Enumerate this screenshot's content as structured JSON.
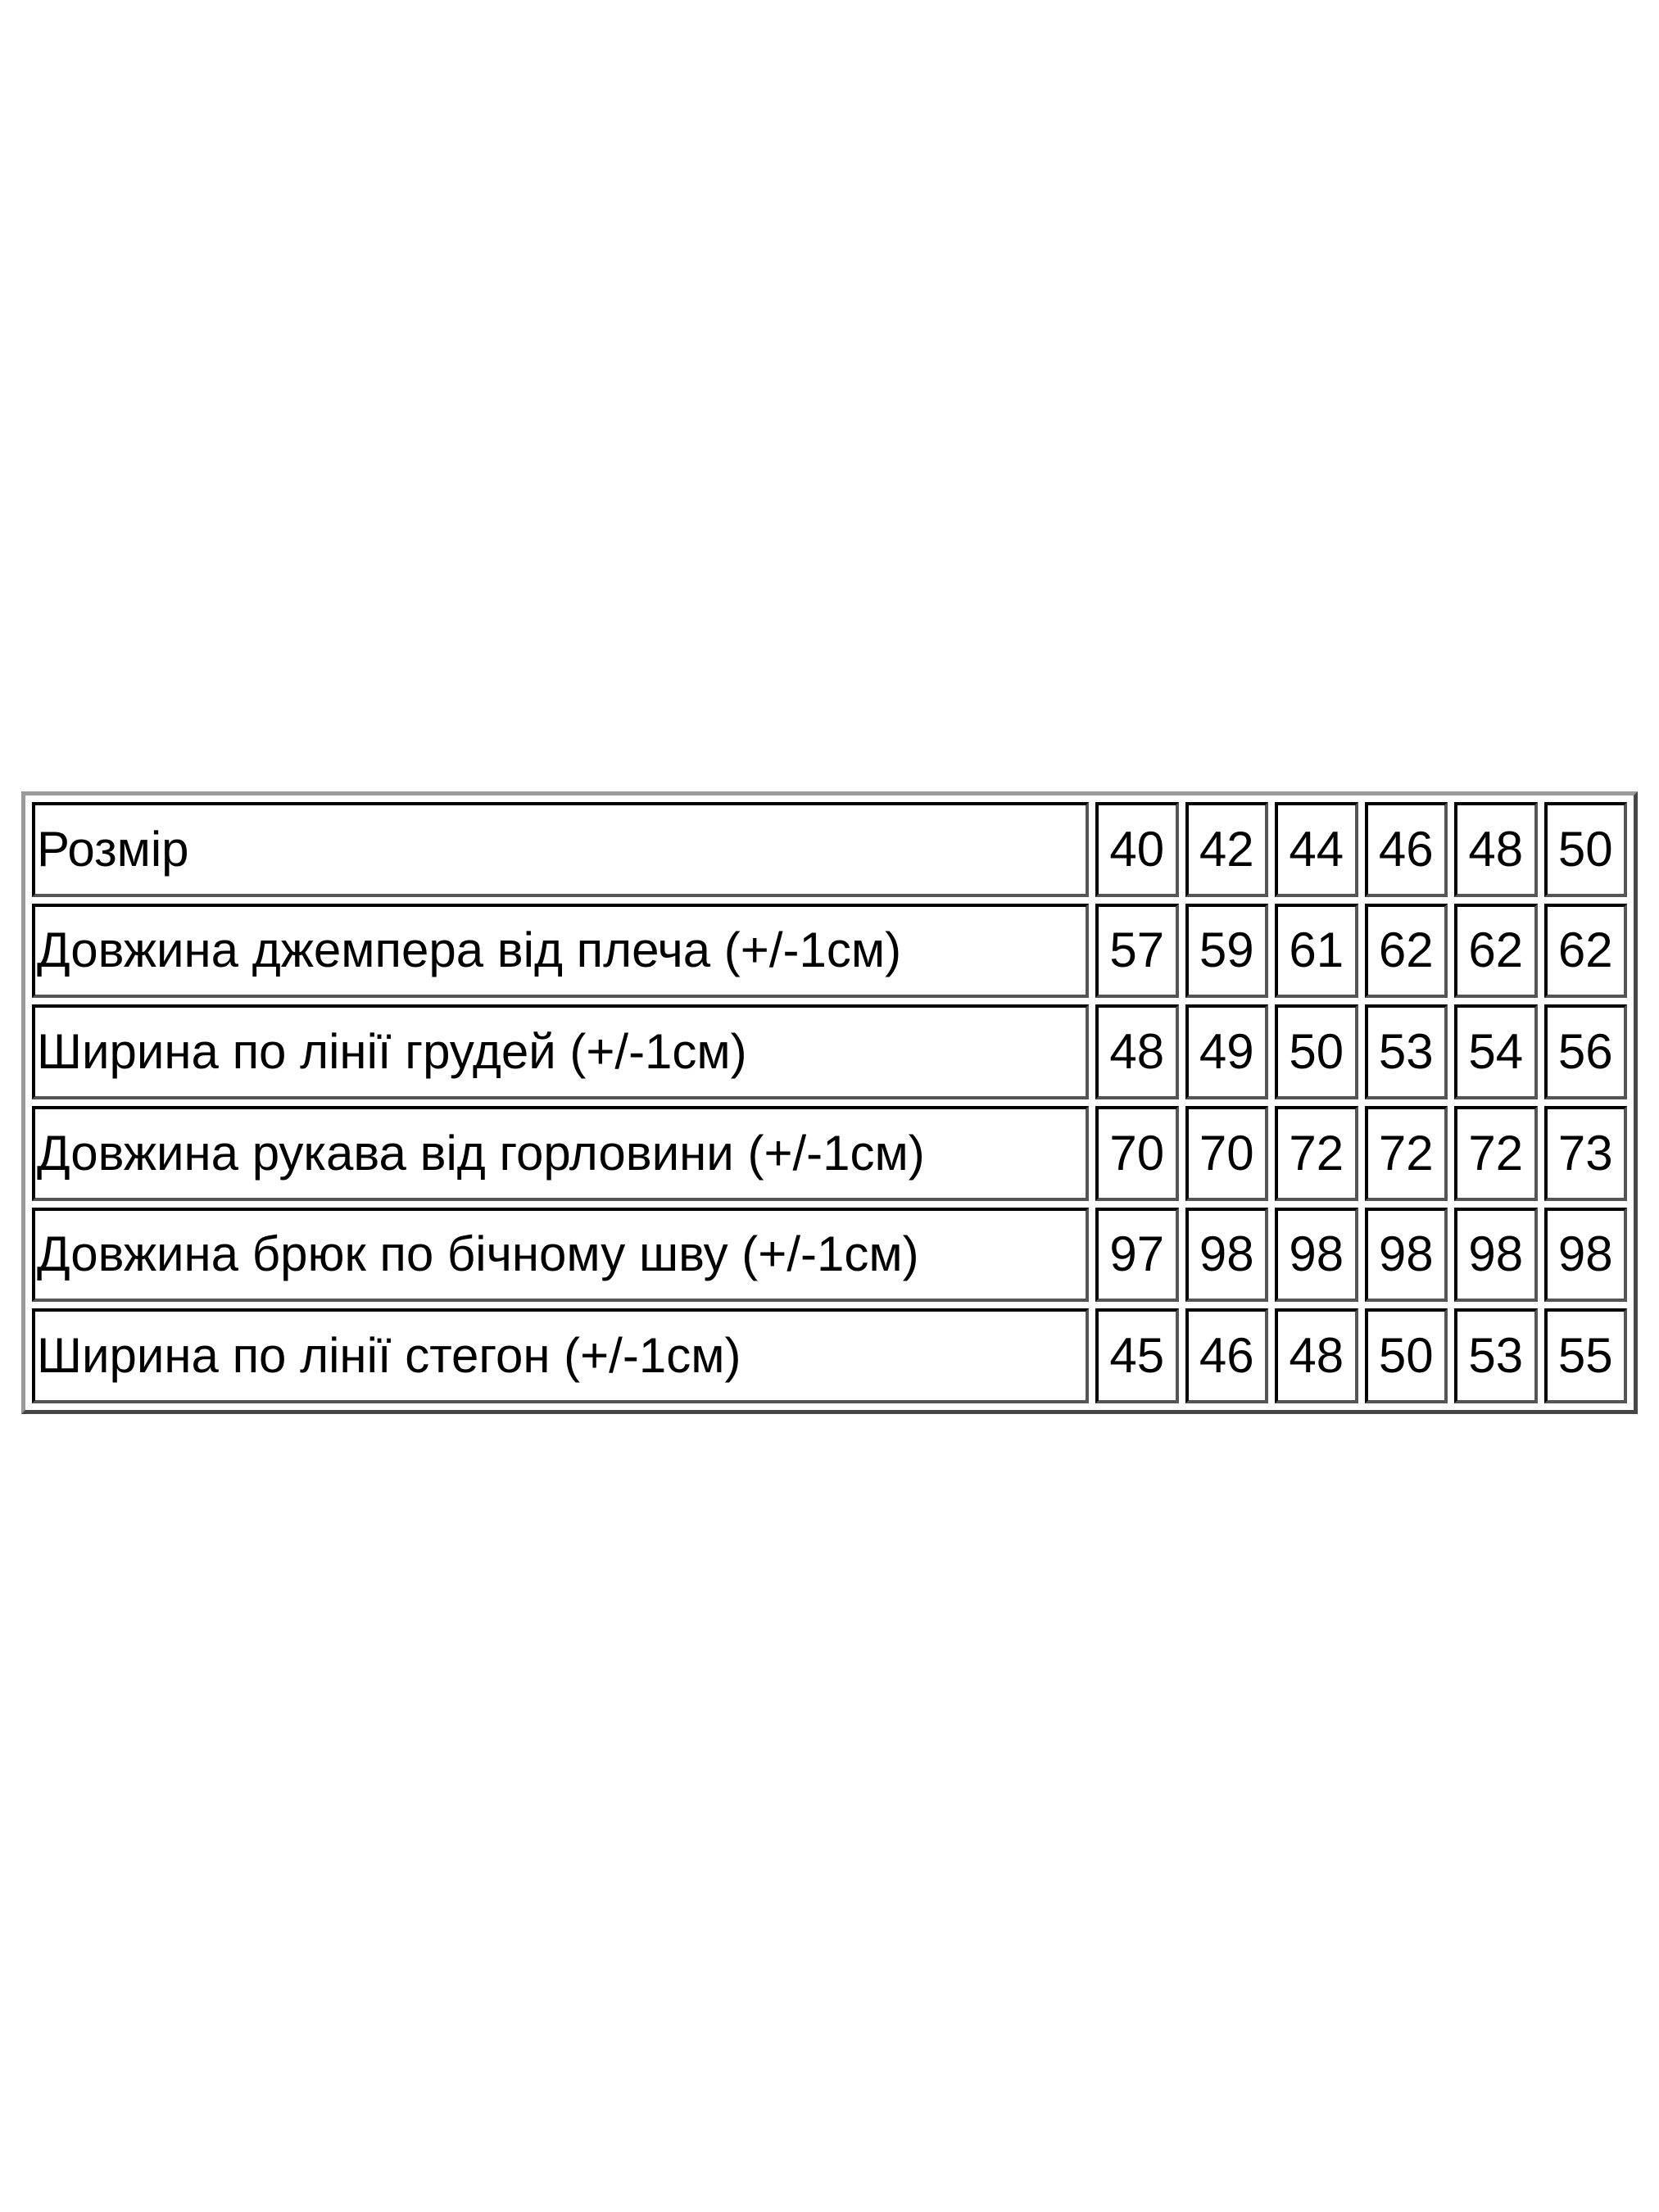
{
  "table": {
    "header": {
      "label": "Розмір",
      "values": [
        "40",
        "42",
        "44",
        "46",
        "48",
        "50"
      ]
    },
    "rows": [
      {
        "label": "Довжина джемпера від плеча (+/-1см)",
        "values": [
          "57",
          "59",
          "61",
          "62",
          "62",
          "62"
        ]
      },
      {
        "label": "Ширина по лінії грудей (+/-1см)",
        "values": [
          "48",
          "49",
          "50",
          "53",
          "54",
          "56"
        ]
      },
      {
        "label": "Довжина рукава від горловини (+/-1см)",
        "values": [
          "70",
          "70",
          "72",
          "72",
          "72",
          "73"
        ]
      },
      {
        "label": "Довжина брюк по бічному шву (+/-1см)",
        "values": [
          "97",
          "98",
          "98",
          "98",
          "98",
          "98"
        ]
      },
      {
        "label": "Ширина по лінії стегон (+/-1см)",
        "values": [
          "45",
          "46",
          "48",
          "50",
          "53",
          "55"
        ]
      }
    ]
  }
}
